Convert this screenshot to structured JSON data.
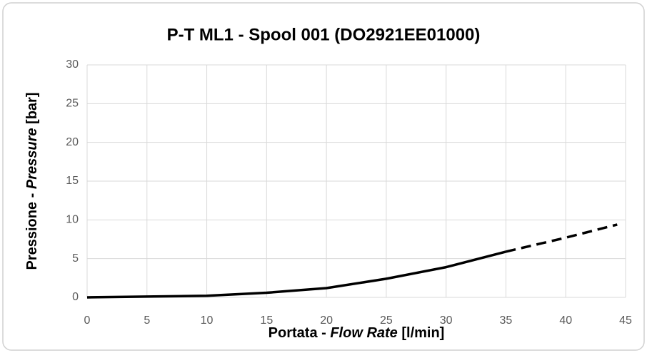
{
  "chart_data": {
    "type": "line",
    "title": "P-T  ML1 - Spool 001 (DO2921EE01000)",
    "xlabel": [
      "Portata - ",
      "Flow Rate",
      " [l/min]"
    ],
    "ylabel": [
      "Pressione - ",
      "Pressure",
      " [bar]"
    ],
    "series": [
      {
        "color": "#000000",
        "style": "solid",
        "x": [
          0,
          5,
          10,
          15,
          20,
          25,
          30,
          35
        ],
        "y": [
          0,
          0.1,
          0.2,
          0.6,
          1.2,
          2.4,
          3.9,
          5.9
        ]
      },
      {
        "color": "#000000",
        "style": "dashed",
        "x": [
          35,
          40,
          44.3
        ],
        "y": [
          5.9,
          7.7,
          9.4
        ]
      }
    ],
    "xlim": [
      0,
      45
    ],
    "xticks": [
      0,
      5,
      10,
      15,
      20,
      25,
      30,
      35,
      40,
      45
    ],
    "ylim": [
      0,
      30
    ],
    "yticks": [
      0,
      5,
      10,
      15,
      20,
      25,
      30
    ],
    "grid": true
  }
}
